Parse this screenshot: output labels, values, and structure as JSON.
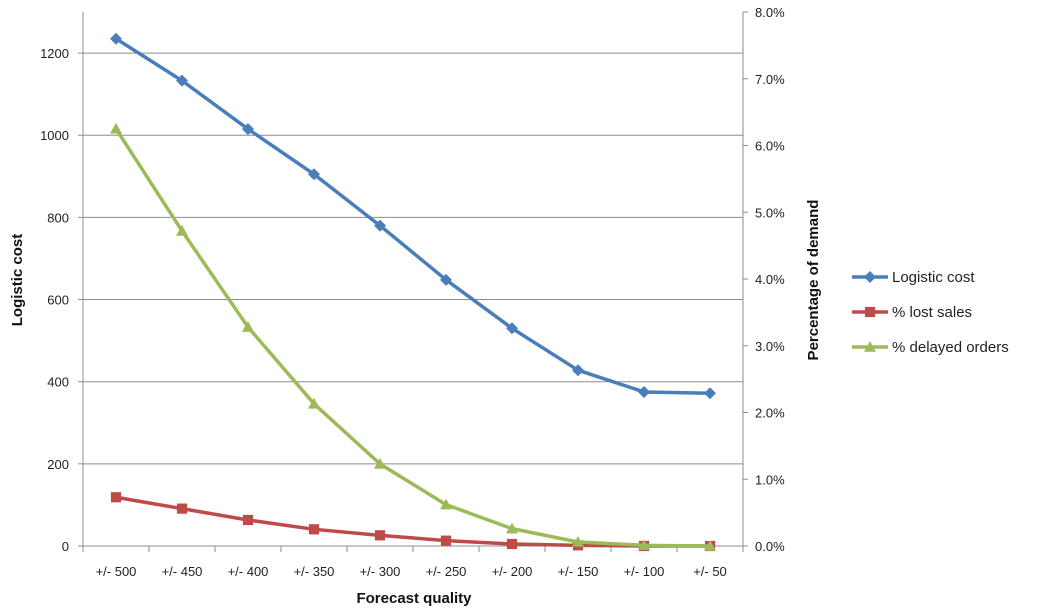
{
  "chart_data": {
    "type": "line",
    "categories": [
      "+/- 500",
      "+/- 450",
      "+/- 400",
      "+/- 350",
      "+/- 300",
      "+/- 250",
      "+/- 200",
      "+/- 150",
      "+/- 100",
      "+/- 50"
    ],
    "xlabel": "Forecast quality",
    "ylabel": "Logistic cost",
    "y2label": "Percentage of demand",
    "ylim": [
      0,
      1300
    ],
    "y2lim": [
      0,
      0.08
    ],
    "yticks": [
      "0",
      "200",
      "400",
      "600",
      "800",
      "1000",
      "1200"
    ],
    "y2ticks": [
      "0.0%",
      "1.0%",
      "2.0%",
      "3.0%",
      "4.0%",
      "5.0%",
      "6.0%",
      "7.0%",
      "8.0%"
    ],
    "grid": true,
    "legend_position": "right",
    "series": [
      {
        "name": "Logistic cost",
        "axis": "left",
        "marker": "diamond",
        "color": "#4A7EBB",
        "values": [
          1235,
          1133,
          1015,
          905,
          780,
          648,
          530,
          428,
          375,
          372
        ]
      },
      {
        "name": "% lost sales",
        "axis": "right",
        "marker": "square",
        "color": "#BE4B48",
        "values": [
          0.0073,
          0.0056,
          0.0039,
          0.0025,
          0.0016,
          0.0008,
          0.0003,
          0.0001,
          0.0,
          0.0
        ]
      },
      {
        "name": "% delayed orders",
        "axis": "right",
        "marker": "triangle",
        "color": "#9BBB59",
        "values": [
          0.0625,
          0.0472,
          0.0328,
          0.0213,
          0.0123,
          0.0062,
          0.0026,
          0.0006,
          0.0001,
          0.0
        ]
      }
    ]
  }
}
